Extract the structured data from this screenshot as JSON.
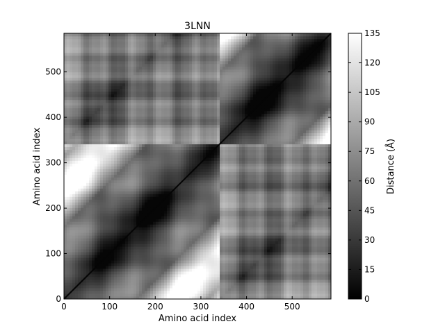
{
  "chart_data": {
    "type": "heatmap",
    "title": "3LNN",
    "xlabel": "Amino acid index",
    "ylabel": "Amino acid index",
    "xlim": [
      0,
      585
    ],
    "ylim": [
      0,
      585
    ],
    "xticks": [
      0,
      100,
      200,
      300,
      400,
      500
    ],
    "yticks": [
      0,
      100,
      200,
      300,
      400,
      500
    ],
    "n_residues": 585,
    "chain_boundary": 342,
    "colormap": "gray",
    "colorbar": {
      "label": "Distance (Å)",
      "range": [
        0,
        135
      ],
      "ticks": [
        0,
        15,
        30,
        45,
        60,
        75,
        90,
        105,
        120,
        135
      ]
    },
    "grid": false
  }
}
